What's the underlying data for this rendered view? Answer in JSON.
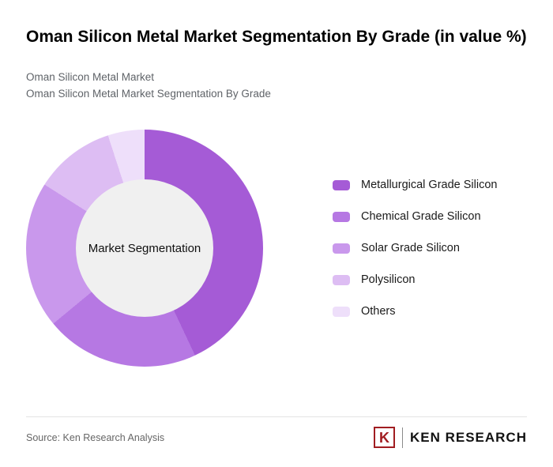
{
  "header": {
    "title": "Oman Silicon Metal Market Segmentation By Grade (in value %)",
    "subtitle1": "Oman Silicon Metal Market",
    "subtitle2": "Oman Silicon Metal Market Segmentation By Grade"
  },
  "chart_data": {
    "type": "pie",
    "donut": true,
    "title": "Oman Silicon Metal Market Segmentation By Grade (in value %)",
    "center_label": "Market Segmentation",
    "legend_position": "right",
    "start_angle_deg": 0,
    "direction": "clockwise",
    "categories": [
      "Metallurgical Grade Silicon",
      "Chemical Grade Silicon",
      "Solar Grade Silicon",
      "Polysilicon",
      "Others"
    ],
    "values": [
      43,
      21,
      20,
      11,
      5
    ],
    "colors": [
      "#a55bd6",
      "#b678e3",
      "#c998ec",
      "#ddbdf3",
      "#eedffa"
    ],
    "hole_color": "#f0f0f0"
  },
  "footer": {
    "source": "Source: Ken Research Analysis",
    "logo": {
      "letter": "K",
      "text": "KEN RESEARCH",
      "color": "#a11d21"
    }
  }
}
